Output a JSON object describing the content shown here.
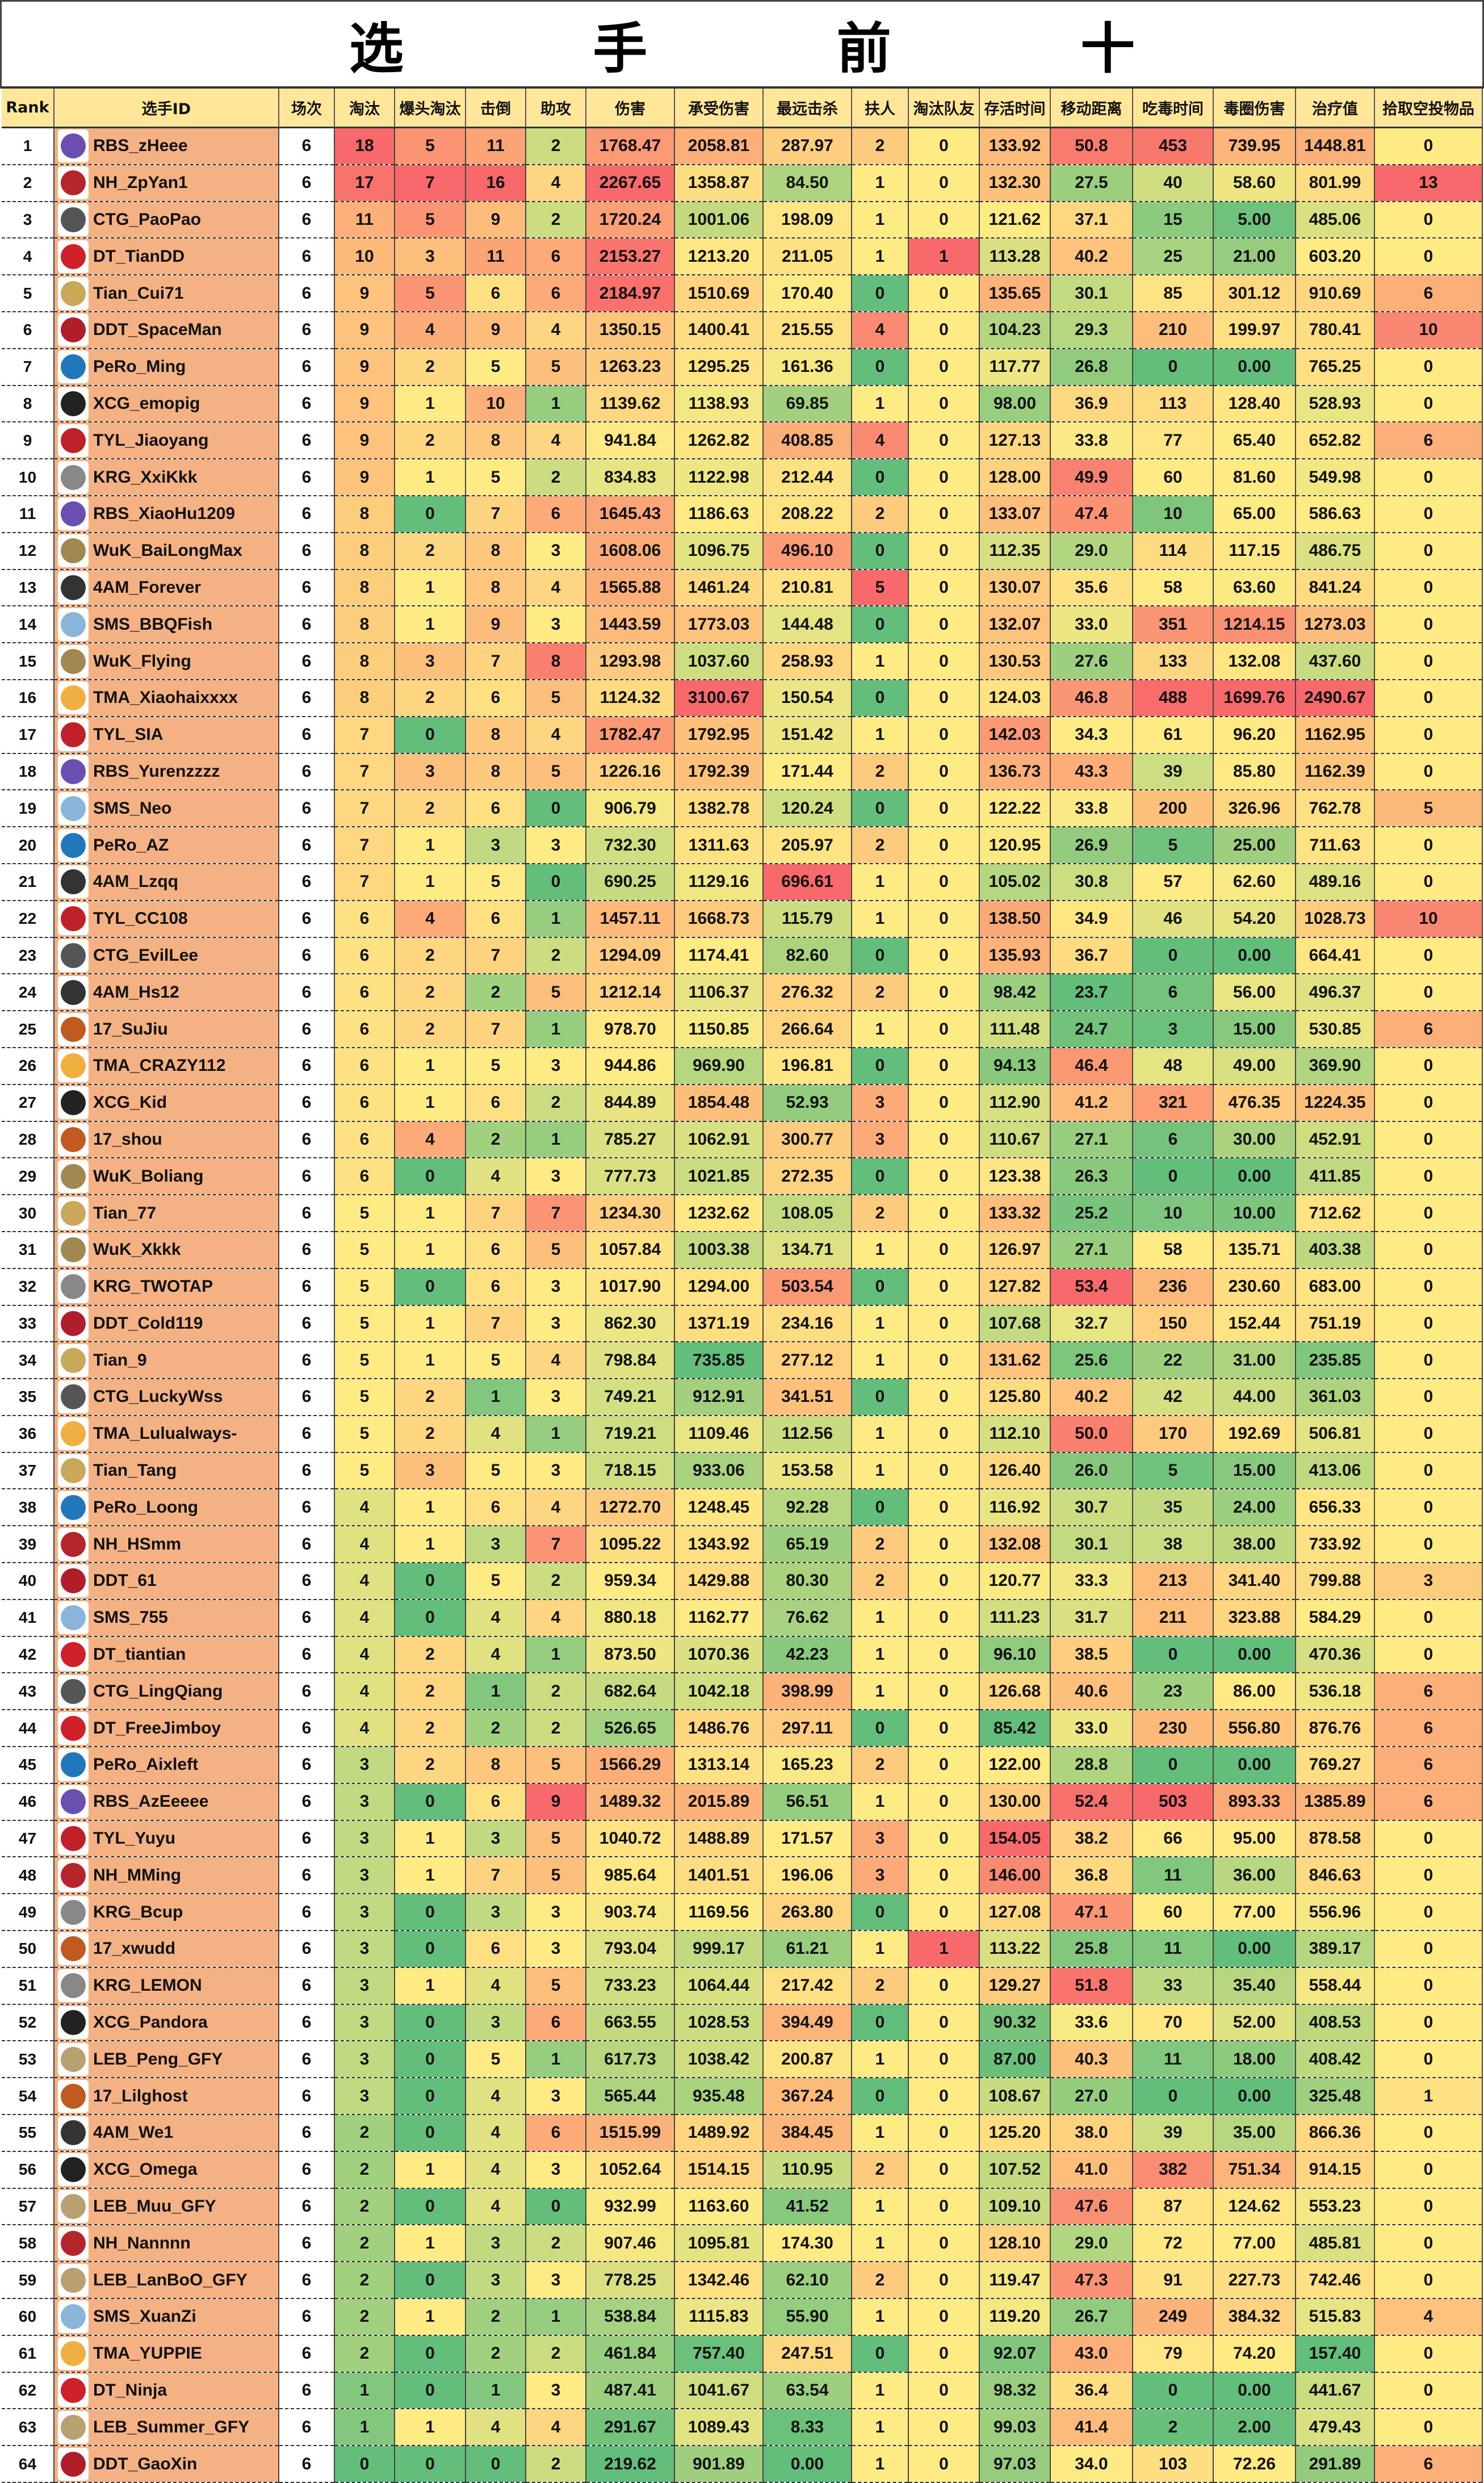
{
  "title": "选 手 前 十",
  "headers": [
    "Rank",
    "选手ID",
    "场次",
    "淘汰",
    "爆头淘汰",
    "击倒",
    "助攻",
    "伤害",
    "承受伤害",
    "最远击杀",
    "扶人",
    "淘汰队友",
    "存活时间",
    "移动距离",
    "吃毒时间",
    "毒圈伤害",
    "治疗值",
    "拾取空投物品"
  ],
  "scale_colors": {
    "low": "#63BE7B",
    "mid": "#FFEB84",
    "high": "#F8696B"
  },
  "team_colors": {
    "RBS": "#6a4fb0",
    "NH": "#b5252b",
    "CTG": "#555555",
    "DT": "#d0202a",
    "Tian": "#c9a85a",
    "DDT": "#b01e2a",
    "PeRo": "#2277bb",
    "XCG": "#222222",
    "TYL": "#c0202a",
    "KRG": "#888888",
    "WuK": "#a08850",
    "4AM": "#333333",
    "SMS": "#8ab4d8",
    "TMA": "#f0b040",
    "17": "#c05a20",
    "LEB": "#b8a070"
  },
  "rows": [
    [
      "1",
      "RBS_zHeee",
      "6",
      "18",
      "5",
      "11",
      "2",
      "1768.47",
      "2058.81",
      "287.97",
      "2",
      "0",
      "133.92",
      "50.8",
      "453",
      "739.95",
      "1448.81",
      "0"
    ],
    [
      "2",
      "NH_ZpYan1",
      "6",
      "17",
      "7",
      "16",
      "4",
      "2267.65",
      "1358.87",
      "84.50",
      "1",
      "0",
      "132.30",
      "27.5",
      "40",
      "58.60",
      "801.99",
      "13"
    ],
    [
      "3",
      "CTG_PaoPao",
      "6",
      "11",
      "5",
      "9",
      "2",
      "1720.24",
      "1001.06",
      "198.09",
      "1",
      "0",
      "121.62",
      "37.1",
      "15",
      "5.00",
      "485.06",
      "0"
    ],
    [
      "4",
      "DT_TianDD",
      "6",
      "10",
      "3",
      "11",
      "6",
      "2153.27",
      "1213.20",
      "211.05",
      "1",
      "1",
      "113.28",
      "40.2",
      "25",
      "21.00",
      "603.20",
      "0"
    ],
    [
      "5",
      "Tian_Cui71",
      "6",
      "9",
      "5",
      "6",
      "6",
      "2184.97",
      "1510.69",
      "170.40",
      "0",
      "0",
      "135.65",
      "30.1",
      "85",
      "301.12",
      "910.69",
      "6"
    ],
    [
      "6",
      "DDT_SpaceMan",
      "6",
      "9",
      "4",
      "9",
      "4",
      "1350.15",
      "1400.41",
      "215.55",
      "4",
      "0",
      "104.23",
      "29.3",
      "210",
      "199.97",
      "780.41",
      "10"
    ],
    [
      "7",
      "PeRo_Ming",
      "6",
      "9",
      "2",
      "5",
      "5",
      "1263.23",
      "1295.25",
      "161.36",
      "0",
      "0",
      "117.77",
      "26.8",
      "0",
      "0.00",
      "765.25",
      "0"
    ],
    [
      "8",
      "XCG_emopig",
      "6",
      "9",
      "1",
      "10",
      "1",
      "1139.62",
      "1138.93",
      "69.85",
      "1",
      "0",
      "98.00",
      "36.9",
      "113",
      "128.40",
      "528.93",
      "0"
    ],
    [
      "9",
      "TYL_Jiaoyang",
      "6",
      "9",
      "2",
      "8",
      "4",
      "941.84",
      "1262.82",
      "408.85",
      "4",
      "0",
      "127.13",
      "33.8",
      "77",
      "65.40",
      "652.82",
      "6"
    ],
    [
      "10",
      "KRG_XxiKkk",
      "6",
      "9",
      "1",
      "5",
      "2",
      "834.83",
      "1122.98",
      "212.44",
      "0",
      "0",
      "128.00",
      "49.9",
      "60",
      "81.60",
      "549.98",
      "0"
    ],
    [
      "11",
      "RBS_XiaoHu1209",
      "6",
      "8",
      "0",
      "7",
      "6",
      "1645.43",
      "1186.63",
      "208.22",
      "2",
      "0",
      "133.07",
      "47.4",
      "10",
      "65.00",
      "586.63",
      "0"
    ],
    [
      "12",
      "WuK_BaiLongMax",
      "6",
      "8",
      "2",
      "8",
      "3",
      "1608.06",
      "1096.75",
      "496.10",
      "0",
      "0",
      "112.35",
      "29.0",
      "114",
      "117.15",
      "486.75",
      "0"
    ],
    [
      "13",
      "4AM_Forever",
      "6",
      "8",
      "1",
      "8",
      "4",
      "1565.88",
      "1461.24",
      "210.81",
      "5",
      "0",
      "130.07",
      "35.6",
      "58",
      "63.60",
      "841.24",
      "0"
    ],
    [
      "14",
      "SMS_BBQFish",
      "6",
      "8",
      "1",
      "9",
      "3",
      "1443.59",
      "1773.03",
      "144.48",
      "0",
      "0",
      "132.07",
      "33.0",
      "351",
      "1214.15",
      "1273.03",
      "0"
    ],
    [
      "15",
      "WuK_Flying",
      "6",
      "8",
      "3",
      "7",
      "8",
      "1293.98",
      "1037.60",
      "258.93",
      "1",
      "0",
      "130.53",
      "27.6",
      "133",
      "132.08",
      "437.60",
      "0"
    ],
    [
      "16",
      "TMA_Xiaohaixxxx",
      "6",
      "8",
      "2",
      "6",
      "5",
      "1124.32",
      "3100.67",
      "150.54",
      "0",
      "0",
      "124.03",
      "46.8",
      "488",
      "1699.76",
      "2490.67",
      "0"
    ],
    [
      "17",
      "TYL_SIA",
      "6",
      "7",
      "0",
      "8",
      "4",
      "1782.47",
      "1792.95",
      "151.42",
      "1",
      "0",
      "142.03",
      "34.3",
      "61",
      "96.20",
      "1162.95",
      "0"
    ],
    [
      "18",
      "RBS_Yurenzzzz",
      "6",
      "7",
      "3",
      "8",
      "5",
      "1226.16",
      "1792.39",
      "171.44",
      "2",
      "0",
      "136.73",
      "43.3",
      "39",
      "85.80",
      "1162.39",
      "0"
    ],
    [
      "19",
      "SMS_Neo",
      "6",
      "7",
      "2",
      "6",
      "0",
      "906.79",
      "1382.78",
      "120.24",
      "0",
      "0",
      "122.22",
      "33.8",
      "200",
      "326.96",
      "762.78",
      "5"
    ],
    [
      "20",
      "PeRo_AZ",
      "6",
      "7",
      "1",
      "3",
      "3",
      "732.30",
      "1311.63",
      "205.97",
      "2",
      "0",
      "120.95",
      "26.9",
      "5",
      "25.00",
      "711.63",
      "0"
    ],
    [
      "21",
      "4AM_Lzqq",
      "6",
      "7",
      "1",
      "5",
      "0",
      "690.25",
      "1129.16",
      "696.61",
      "1",
      "0",
      "105.02",
      "30.8",
      "57",
      "62.60",
      "489.16",
      "0"
    ],
    [
      "22",
      "TYL_CC108",
      "6",
      "6",
      "4",
      "6",
      "1",
      "1457.11",
      "1668.73",
      "115.79",
      "1",
      "0",
      "138.50",
      "34.9",
      "46",
      "54.20",
      "1028.73",
      "10"
    ],
    [
      "23",
      "CTG_EvilLee",
      "6",
      "6",
      "2",
      "7",
      "2",
      "1294.09",
      "1174.41",
      "82.60",
      "0",
      "0",
      "135.93",
      "36.7",
      "0",
      "0.00",
      "664.41",
      "0"
    ],
    [
      "24",
      "4AM_Hs12",
      "6",
      "6",
      "2",
      "2",
      "5",
      "1212.14",
      "1106.37",
      "276.32",
      "2",
      "0",
      "98.42",
      "23.7",
      "6",
      "56.00",
      "496.37",
      "0"
    ],
    [
      "25",
      "17_SuJiu",
      "6",
      "6",
      "2",
      "7",
      "1",
      "978.70",
      "1150.85",
      "266.64",
      "1",
      "0",
      "111.48",
      "24.7",
      "3",
      "15.00",
      "530.85",
      "6"
    ],
    [
      "26",
      "TMA_CRAZY112",
      "6",
      "6",
      "1",
      "5",
      "3",
      "944.86",
      "969.90",
      "196.81",
      "0",
      "0",
      "94.13",
      "46.4",
      "48",
      "49.00",
      "369.90",
      "0"
    ],
    [
      "27",
      "XCG_Kid",
      "6",
      "6",
      "1",
      "6",
      "2",
      "844.89",
      "1854.48",
      "52.93",
      "3",
      "0",
      "112.90",
      "41.2",
      "321",
      "476.35",
      "1224.35",
      "0"
    ],
    [
      "28",
      "17_shou",
      "6",
      "6",
      "4",
      "2",
      "1",
      "785.27",
      "1062.91",
      "300.77",
      "3",
      "0",
      "110.67",
      "27.1",
      "6",
      "30.00",
      "452.91",
      "0"
    ],
    [
      "29",
      "WuK_Boliang",
      "6",
      "6",
      "0",
      "4",
      "3",
      "777.73",
      "1021.85",
      "272.35",
      "0",
      "0",
      "123.38",
      "26.3",
      "0",
      "0.00",
      "411.85",
      "0"
    ],
    [
      "30",
      "Tian_77",
      "6",
      "5",
      "1",
      "7",
      "7",
      "1234.30",
      "1232.62",
      "108.05",
      "2",
      "0",
      "133.32",
      "25.2",
      "10",
      "10.00",
      "712.62",
      "0"
    ],
    [
      "31",
      "WuK_Xkkk",
      "6",
      "5",
      "1",
      "6",
      "5",
      "1057.84",
      "1003.38",
      "134.71",
      "1",
      "0",
      "126.97",
      "27.1",
      "58",
      "135.71",
      "403.38",
      "0"
    ],
    [
      "32",
      "KRG_TWOTAP",
      "6",
      "5",
      "0",
      "6",
      "3",
      "1017.90",
      "1294.00",
      "503.54",
      "0",
      "0",
      "127.82",
      "53.4",
      "236",
      "230.60",
      "683.00",
      "0"
    ],
    [
      "33",
      "DDT_Cold119",
      "6",
      "5",
      "1",
      "7",
      "3",
      "862.30",
      "1371.19",
      "234.16",
      "1",
      "0",
      "107.68",
      "32.7",
      "150",
      "152.44",
      "751.19",
      "0"
    ],
    [
      "34",
      "Tian_9",
      "6",
      "5",
      "1",
      "5",
      "4",
      "798.84",
      "735.85",
      "277.12",
      "1",
      "0",
      "131.62",
      "25.6",
      "22",
      "31.00",
      "235.85",
      "0"
    ],
    [
      "35",
      "CTG_LuckyWss",
      "6",
      "5",
      "2",
      "1",
      "3",
      "749.21",
      "912.91",
      "341.51",
      "0",
      "0",
      "125.80",
      "40.2",
      "42",
      "44.00",
      "361.03",
      "0"
    ],
    [
      "36",
      "TMA_Lulualways-",
      "6",
      "5",
      "2",
      "4",
      "1",
      "719.21",
      "1109.46",
      "112.56",
      "1",
      "0",
      "112.10",
      "50.0",
      "170",
      "192.69",
      "506.81",
      "0"
    ],
    [
      "37",
      "Tian_Tang",
      "6",
      "5",
      "3",
      "5",
      "3",
      "718.15",
      "933.06",
      "153.58",
      "1",
      "0",
      "126.40",
      "26.0",
      "5",
      "15.00",
      "413.06",
      "0"
    ],
    [
      "38",
      "PeRo_Loong",
      "6",
      "4",
      "1",
      "6",
      "4",
      "1272.70",
      "1248.45",
      "92.28",
      "0",
      "0",
      "116.92",
      "30.7",
      "35",
      "24.00",
      "656.33",
      "0"
    ],
    [
      "39",
      "NH_HSmm",
      "6",
      "4",
      "1",
      "3",
      "7",
      "1095.22",
      "1343.92",
      "65.19",
      "2",
      "0",
      "132.08",
      "30.1",
      "38",
      "38.00",
      "733.92",
      "0"
    ],
    [
      "40",
      "DDT_61",
      "6",
      "4",
      "0",
      "5",
      "2",
      "959.34",
      "1429.88",
      "80.30",
      "2",
      "0",
      "120.77",
      "33.3",
      "213",
      "341.40",
      "799.88",
      "3"
    ],
    [
      "41",
      "SMS_755",
      "6",
      "4",
      "0",
      "4",
      "4",
      "880.18",
      "1162.77",
      "76.62",
      "1",
      "0",
      "111.23",
      "31.7",
      "211",
      "323.88",
      "584.29",
      "0"
    ],
    [
      "42",
      "DT_tiantian",
      "6",
      "4",
      "2",
      "4",
      "1",
      "873.50",
      "1070.36",
      "42.23",
      "1",
      "0",
      "96.10",
      "38.5",
      "0",
      "0.00",
      "470.36",
      "0"
    ],
    [
      "43",
      "CTG_LingQiang",
      "6",
      "4",
      "2",
      "1",
      "2",
      "682.64",
      "1042.18",
      "398.99",
      "1",
      "0",
      "126.68",
      "40.6",
      "23",
      "86.00",
      "536.18",
      "6"
    ],
    [
      "44",
      "DT_FreeJimboy",
      "6",
      "4",
      "2",
      "2",
      "2",
      "526.65",
      "1486.76",
      "297.11",
      "0",
      "0",
      "85.42",
      "33.0",
      "230",
      "556.80",
      "876.76",
      "6"
    ],
    [
      "45",
      "PeRo_Aixleft",
      "6",
      "3",
      "2",
      "8",
      "5",
      "1566.29",
      "1313.14",
      "165.23",
      "2",
      "0",
      "122.00",
      "28.8",
      "0",
      "0.00",
      "769.27",
      "6"
    ],
    [
      "46",
      "RBS_AzEeeee",
      "6",
      "3",
      "0",
      "6",
      "9",
      "1489.32",
      "2015.89",
      "56.51",
      "1",
      "0",
      "130.00",
      "52.4",
      "503",
      "893.33",
      "1385.89",
      "6"
    ],
    [
      "47",
      "TYL_Yuyu",
      "6",
      "3",
      "1",
      "3",
      "5",
      "1040.72",
      "1488.89",
      "171.57",
      "3",
      "0",
      "154.05",
      "38.2",
      "66",
      "95.00",
      "878.58",
      "0"
    ],
    [
      "48",
      "NH_MMing",
      "6",
      "3",
      "1",
      "7",
      "5",
      "985.64",
      "1401.51",
      "196.06",
      "3",
      "0",
      "146.00",
      "36.8",
      "11",
      "36.00",
      "846.63",
      "0"
    ],
    [
      "49",
      "KRG_Bcup",
      "6",
      "3",
      "0",
      "3",
      "3",
      "903.74",
      "1169.56",
      "263.80",
      "0",
      "0",
      "127.08",
      "47.1",
      "60",
      "77.00",
      "556.96",
      "0"
    ],
    [
      "50",
      "17_xwudd",
      "6",
      "3",
      "0",
      "6",
      "3",
      "793.04",
      "999.17",
      "61.21",
      "1",
      "1",
      "113.22",
      "25.8",
      "11",
      "0.00",
      "389.17",
      "0"
    ],
    [
      "51",
      "KRG_LEMON",
      "6",
      "3",
      "1",
      "4",
      "5",
      "733.23",
      "1064.44",
      "217.42",
      "2",
      "0",
      "129.27",
      "51.8",
      "33",
      "35.40",
      "558.44",
      "0"
    ],
    [
      "52",
      "XCG_Pandora",
      "6",
      "3",
      "0",
      "3",
      "6",
      "663.55",
      "1028.53",
      "394.49",
      "0",
      "0",
      "90.32",
      "33.6",
      "70",
      "52.00",
      "408.53",
      "0"
    ],
    [
      "53",
      "LEB_Peng_GFY",
      "6",
      "3",
      "0",
      "5",
      "1",
      "617.73",
      "1038.42",
      "200.87",
      "1",
      "0",
      "87.00",
      "40.3",
      "11",
      "18.00",
      "408.42",
      "0"
    ],
    [
      "54",
      "17_Lilghost",
      "6",
      "3",
      "0",
      "4",
      "3",
      "565.44",
      "935.48",
      "367.24",
      "0",
      "0",
      "108.67",
      "27.0",
      "0",
      "0.00",
      "325.48",
      "1"
    ],
    [
      "55",
      "4AM_We1",
      "6",
      "2",
      "0",
      "4",
      "6",
      "1515.99",
      "1489.92",
      "384.45",
      "1",
      "0",
      "125.20",
      "38.0",
      "39",
      "35.00",
      "866.36",
      "0"
    ],
    [
      "56",
      "XCG_Omega",
      "6",
      "2",
      "1",
      "4",
      "3",
      "1052.64",
      "1514.15",
      "110.95",
      "2",
      "0",
      "107.52",
      "41.0",
      "382",
      "751.34",
      "914.15",
      "0"
    ],
    [
      "57",
      "LEB_Muu_GFY",
      "6",
      "2",
      "0",
      "4",
      "0",
      "932.99",
      "1163.60",
      "41.52",
      "1",
      "0",
      "109.10",
      "47.6",
      "87",
      "124.62",
      "553.23",
      "0"
    ],
    [
      "58",
      "NH_Nannnn",
      "6",
      "2",
      "1",
      "3",
      "2",
      "907.46",
      "1095.81",
      "174.30",
      "1",
      "0",
      "128.10",
      "29.0",
      "72",
      "77.00",
      "485.81",
      "0"
    ],
    [
      "59",
      "LEB_LanBoO_GFY",
      "6",
      "2",
      "0",
      "3",
      "3",
      "778.25",
      "1342.46",
      "62.10",
      "2",
      "0",
      "119.47",
      "47.3",
      "91",
      "227.73",
      "742.46",
      "0"
    ],
    [
      "60",
      "SMS_XuanZi",
      "6",
      "2",
      "1",
      "2",
      "1",
      "538.84",
      "1115.83",
      "55.90",
      "1",
      "0",
      "119.20",
      "26.7",
      "249",
      "384.32",
      "515.83",
      "4"
    ],
    [
      "61",
      "TMA_YUPPIE",
      "6",
      "2",
      "0",
      "2",
      "2",
      "461.84",
      "757.40",
      "247.51",
      "0",
      "0",
      "92.07",
      "43.0",
      "79",
      "74.20",
      "157.40",
      "0"
    ],
    [
      "62",
      "DT_Ninja",
      "6",
      "1",
      "0",
      "1",
      "3",
      "487.41",
      "1041.67",
      "63.54",
      "1",
      "0",
      "98.32",
      "36.4",
      "0",
      "0.00",
      "441.67",
      "0"
    ],
    [
      "63",
      "LEB_Summer_GFY",
      "6",
      "1",
      "1",
      "4",
      "4",
      "291.67",
      "1089.43",
      "8.33",
      "1",
      "0",
      "99.03",
      "41.4",
      "2",
      "2.00",
      "479.43",
      "0"
    ],
    [
      "64",
      "DDT_GaoXin",
      "6",
      "0",
      "0",
      "0",
      "2",
      "219.62",
      "901.89",
      "0.00",
      "1",
      "0",
      "97.03",
      "34.0",
      "103",
      "72.26",
      "291.89",
      "6"
    ]
  ]
}
